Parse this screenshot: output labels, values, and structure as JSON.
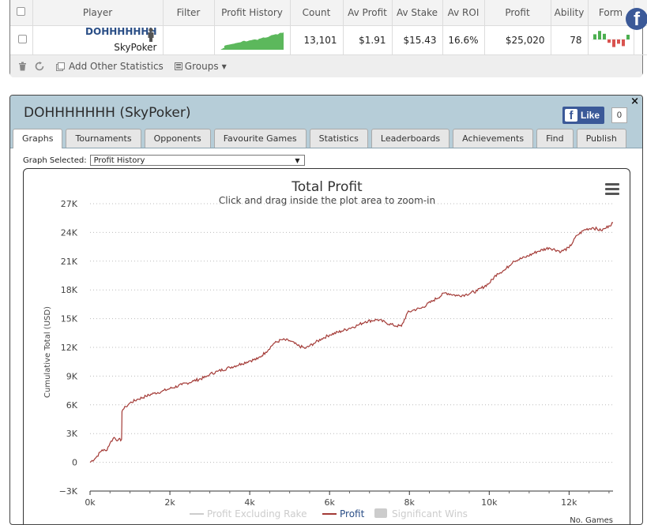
{
  "stats_table": {
    "headers": {
      "player": "Player",
      "filter": "Filter",
      "profit_history": "Profit History",
      "count": "Count",
      "av_profit": "Av Profit",
      "av_stake": "Av Stake",
      "av_roi": "Av ROI",
      "profit": "Profit",
      "ability": "Ability",
      "form": "Form"
    },
    "row": {
      "player_name": "DOHHHHHHH",
      "site": "SkyPoker",
      "filter": "",
      "count": "13,101",
      "av_profit": "$1.91",
      "av_stake": "$15.43",
      "av_roi": "16.6%",
      "profit": "$25,020",
      "ability": "78",
      "remove": "x"
    },
    "form_bars": [
      {
        "value": 0.55,
        "color": "#4caf50",
        "dir": "up"
      },
      {
        "value": 0.9,
        "color": "#4caf50",
        "dir": "up"
      },
      {
        "value": 0.6,
        "color": "#4caf50",
        "dir": "up"
      },
      {
        "value": 0.35,
        "color": "#d9534f",
        "dir": "down"
      },
      {
        "value": 0.8,
        "color": "#d9534f",
        "dir": "down"
      },
      {
        "value": 0.45,
        "color": "#d9534f",
        "dir": "down"
      },
      {
        "value": 0.7,
        "color": "#d9534f",
        "dir": "down"
      },
      {
        "value": 0.5,
        "color": "#4caf50",
        "dir": "up"
      }
    ],
    "toolbar": {
      "add_stats": "Add Other Statistics",
      "groups": "Groups"
    }
  },
  "facebook_icon": "f",
  "panel": {
    "title": "DOHHHHHHH (SkyPoker)",
    "like_label": "Like",
    "like_count": "0",
    "close": "×",
    "tabs": [
      "Graphs",
      "Tournaments",
      "Opponents",
      "Favourite Games",
      "Statistics",
      "Leaderboards",
      "Achievements",
      "Find",
      "Publish"
    ],
    "active_tab": "Graphs",
    "graph_selected_label": "Graph Selected:",
    "graph_selected_value": "Profit History"
  },
  "colors": {
    "profit_line": "#a33a36",
    "accent_blue": "#2a4e86",
    "panel_header": "#b6cdd8",
    "sparkline": "#5cb85c"
  },
  "chart_data": {
    "type": "line",
    "title": "Total Profit",
    "subtitle": "Click and drag inside the plot area to zoom-in",
    "ylabel": "Cumulative Total (USD)",
    "xlabel": "No. Games",
    "ylim": [
      -3000,
      27000
    ],
    "xlim": [
      0,
      13101
    ],
    "y_ticks": [
      -3000,
      0,
      3000,
      6000,
      9000,
      12000,
      15000,
      18000,
      21000,
      24000,
      27000
    ],
    "y_tick_labels": [
      "−3K",
      "0",
      "3K",
      "6K",
      "9K",
      "12K",
      "15K",
      "18K",
      "21K",
      "24K",
      "27K"
    ],
    "x_ticks": [
      0,
      2000,
      4000,
      6000,
      8000,
      10000,
      12000
    ],
    "x_tick_labels": [
      "0k",
      "2k",
      "4k",
      "6k",
      "8k",
      "10k",
      "12k"
    ],
    "legend": [
      "Profit Excluding Rake",
      "Profit",
      "Significant Wins"
    ],
    "legend_placement": "bottom-center",
    "grid": "horizontal dotted",
    "series": [
      {
        "name": "Profit",
        "x": [
          0,
          150,
          300,
          400,
          500,
          600,
          700,
          790,
          800,
          820,
          900,
          1000,
          1200,
          1400,
          1600,
          1800,
          2000,
          2300,
          2600,
          2900,
          3000,
          3200,
          3500,
          3800,
          4000,
          4200,
          4400,
          4600,
          4800,
          5000,
          5200,
          5400,
          5600,
          5800,
          6000,
          6300,
          6500,
          6700,
          6900,
          7200,
          7400,
          7600,
          7800,
          7950,
          8100,
          8300,
          8600,
          8900,
          9200,
          9400,
          9700,
          10000,
          10200,
          10400,
          10600,
          10900,
          11200,
          11500,
          11800,
          12000,
          12200,
          12400,
          12600,
          12800,
          12900,
          13000,
          13101
        ],
        "values": [
          0,
          500,
          1300,
          1200,
          2000,
          2600,
          2300,
          2400,
          5300,
          5500,
          5800,
          6200,
          6600,
          6900,
          7200,
          7400,
          7700,
          8100,
          8500,
          8900,
          9200,
          9500,
          9900,
          10300,
          10600,
          10800,
          11500,
          12400,
          12800,
          12700,
          12200,
          11900,
          12400,
          12900,
          13300,
          13700,
          14000,
          14300,
          14700,
          14900,
          14600,
          14300,
          14200,
          15600,
          15900,
          16100,
          16900,
          17700,
          17400,
          17500,
          17900,
          18700,
          19700,
          20100,
          21000,
          21400,
          22000,
          22400,
          22000,
          22400,
          23700,
          24300,
          24500,
          24200,
          24400,
          24700,
          25020
        ]
      }
    ]
  }
}
